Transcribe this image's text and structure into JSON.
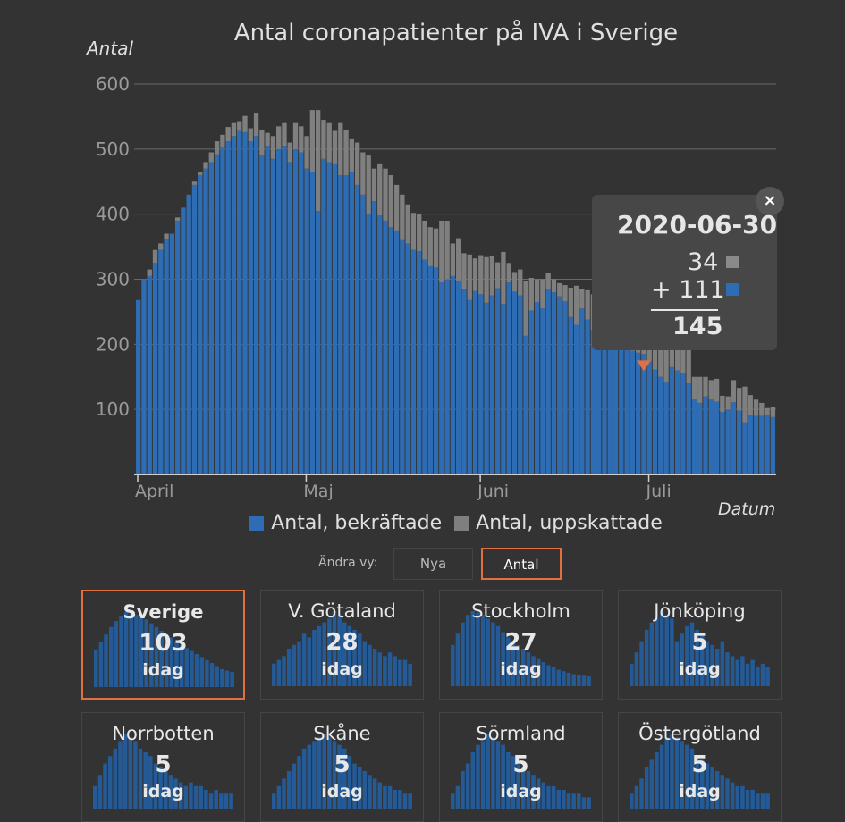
{
  "title": "Antal coronapatienter på IVA i Sverige",
  "chart_data": {
    "type": "bar",
    "stacked": true,
    "title": "Antal coronapatienter på IVA i Sverige",
    "ylabel": "Antal",
    "xlabel": "Datum",
    "ylim": [
      0,
      600
    ],
    "yticks": [
      100,
      200,
      300,
      400,
      500,
      600
    ],
    "xticks": [
      "April",
      "Maj",
      "Juni",
      "Juli"
    ],
    "x_start": "2020-04-01",
    "x_end": "2020-07-07",
    "grid": true,
    "legend_position": "bottom",
    "series": [
      {
        "name": "Antal, bekräftade",
        "color": "#2e6db4",
        "values": [
          268,
          300,
          305,
          325,
          345,
          362,
          370,
          390,
          410,
          430,
          445,
          460,
          470,
          480,
          492,
          502,
          512,
          520,
          528,
          526,
          512,
          520,
          490,
          505,
          485,
          500,
          505,
          480,
          500,
          495,
          470,
          465,
          405,
          485,
          480,
          478,
          460,
          460,
          465,
          445,
          430,
          400,
          420,
          398,
          390,
          380,
          375,
          360,
          355,
          345,
          343,
          330,
          320,
          318,
          295,
          300,
          305,
          298,
          285,
          268,
          282,
          277,
          264,
          275,
          286,
          262,
          295,
          281,
          275,
          213,
          252,
          265,
          255,
          285,
          280,
          274,
          266,
          242,
          230,
          255,
          238,
          222,
          201,
          216,
          204,
          201,
          200,
          193,
          190,
          187,
          185,
          174,
          161,
          150,
          141,
          165,
          160,
          155,
          140,
          115,
          110,
          120,
          115,
          112,
          96,
          100,
          111,
          98,
          80,
          92,
          90,
          90,
          92,
          88
        ]
      },
      {
        "name": "Antal, uppskattade",
        "color": "#7f7f7f",
        "values": [
          0,
          0,
          10,
          20,
          10,
          8,
          0,
          5,
          0,
          0,
          5,
          5,
          10,
          15,
          20,
          20,
          22,
          20,
          15,
          25,
          20,
          35,
          40,
          20,
          35,
          35,
          35,
          30,
          40,
          40,
          50,
          95,
          155,
          60,
          60,
          50,
          80,
          70,
          50,
          65,
          65,
          90,
          50,
          80,
          80,
          80,
          70,
          70,
          60,
          57,
          57,
          60,
          60,
          60,
          95,
          90,
          50,
          65,
          55,
          70,
          50,
          60,
          70,
          60,
          40,
          80,
          30,
          30,
          40,
          85,
          50,
          35,
          45,
          25,
          20,
          20,
          25,
          45,
          60,
          30,
          45,
          55,
          75,
          55,
          60,
          60,
          55,
          55,
          60,
          62,
          60,
          65,
          80,
          90,
          95,
          60,
          60,
          55,
          65,
          35,
          40,
          30,
          30,
          35,
          25,
          20,
          34,
          35,
          55,
          30,
          25,
          20,
          10,
          15
        ]
      }
    ],
    "highlight": {
      "date": "2020-06-30",
      "uppskattade": 34,
      "bekraftade": 111,
      "total": 145,
      "marker_color": "#e07040"
    }
  },
  "tooltip": {
    "date": "2020-06-30",
    "uppskattade": "34",
    "bekraftade": "+ 111",
    "total": "145",
    "close": "×"
  },
  "legend": {
    "bekraftade": "Antal, bekräftade",
    "uppskattade": "Antal, uppskattade"
  },
  "toggle": {
    "label": "Ändra vy:",
    "nya": "Nya",
    "antal": "Antal",
    "selected": "Antal"
  },
  "regions": [
    {
      "name": "Sverige",
      "value": "103",
      "unit": "idag",
      "selected": true,
      "shape": [
        0.5,
        0.6,
        0.7,
        0.8,
        0.88,
        0.95,
        1.0,
        0.98,
        0.96,
        0.95,
        0.9,
        0.85,
        0.8,
        0.75,
        0.7,
        0.66,
        0.6,
        0.56,
        0.52,
        0.48,
        0.44,
        0.4,
        0.36,
        0.32,
        0.28,
        0.24,
        0.22,
        0.2
      ]
    },
    {
      "name": "V. Götaland",
      "value": "28",
      "unit": "idag",
      "selected": false,
      "shape": [
        0.3,
        0.35,
        0.4,
        0.5,
        0.55,
        0.6,
        0.7,
        0.65,
        0.75,
        0.8,
        0.85,
        0.9,
        1.0,
        0.95,
        0.85,
        0.8,
        0.75,
        0.7,
        0.6,
        0.55,
        0.5,
        0.45,
        0.4,
        0.45,
        0.4,
        0.35,
        0.35,
        0.3
      ]
    },
    {
      "name": "Stockholm",
      "value": "27",
      "unit": "idag",
      "selected": false,
      "shape": [
        0.55,
        0.7,
        0.85,
        0.95,
        1.0,
        0.98,
        0.95,
        0.9,
        0.85,
        0.8,
        0.72,
        0.65,
        0.6,
        0.55,
        0.5,
        0.45,
        0.4,
        0.36,
        0.32,
        0.28,
        0.25,
        0.22,
        0.2,
        0.18,
        0.16,
        0.15,
        0.14,
        0.13
      ]
    },
    {
      "name": "Jönköping",
      "value": "5",
      "unit": "idag",
      "selected": false,
      "shape": [
        0.3,
        0.45,
        0.6,
        0.75,
        0.85,
        0.9,
        1.0,
        0.95,
        0.9,
        0.6,
        0.7,
        0.8,
        0.85,
        0.75,
        0.7,
        0.6,
        0.55,
        0.5,
        0.6,
        0.45,
        0.4,
        0.35,
        0.4,
        0.3,
        0.35,
        0.25,
        0.3,
        0.25
      ]
    },
    {
      "name": "Norrbotten",
      "value": "5",
      "unit": "idag",
      "selected": false,
      "shape": [
        0.3,
        0.45,
        0.6,
        0.7,
        0.8,
        0.9,
        1.0,
        0.95,
        0.9,
        0.8,
        0.75,
        0.7,
        0.6,
        0.55,
        0.5,
        0.45,
        0.4,
        0.35,
        0.3,
        0.35,
        0.3,
        0.3,
        0.25,
        0.2,
        0.25,
        0.2,
        0.2,
        0.2
      ]
    },
    {
      "name": "Skåne",
      "value": "5",
      "unit": "idag",
      "selected": false,
      "shape": [
        0.2,
        0.3,
        0.4,
        0.5,
        0.6,
        0.7,
        0.8,
        0.85,
        0.9,
        0.95,
        1.0,
        0.95,
        0.9,
        0.85,
        0.8,
        0.7,
        0.6,
        0.55,
        0.5,
        0.45,
        0.4,
        0.35,
        0.3,
        0.3,
        0.25,
        0.25,
        0.2,
        0.2
      ]
    },
    {
      "name": "Sörmland",
      "value": "5",
      "unit": "idag",
      "selected": false,
      "shape": [
        0.2,
        0.3,
        0.5,
        0.6,
        0.75,
        0.85,
        0.9,
        1.0,
        0.95,
        0.9,
        0.85,
        0.75,
        0.7,
        0.6,
        0.55,
        0.5,
        0.45,
        0.4,
        0.35,
        0.3,
        0.3,
        0.25,
        0.25,
        0.2,
        0.2,
        0.2,
        0.15,
        0.15
      ]
    },
    {
      "name": "Östergötland",
      "value": "5",
      "unit": "idag",
      "selected": false,
      "shape": [
        0.2,
        0.3,
        0.4,
        0.55,
        0.65,
        0.75,
        0.85,
        0.95,
        1.0,
        0.95,
        0.9,
        0.85,
        0.8,
        0.7,
        0.65,
        0.6,
        0.55,
        0.5,
        0.45,
        0.4,
        0.35,
        0.3,
        0.3,
        0.25,
        0.25,
        0.2,
        0.2,
        0.2
      ]
    }
  ]
}
